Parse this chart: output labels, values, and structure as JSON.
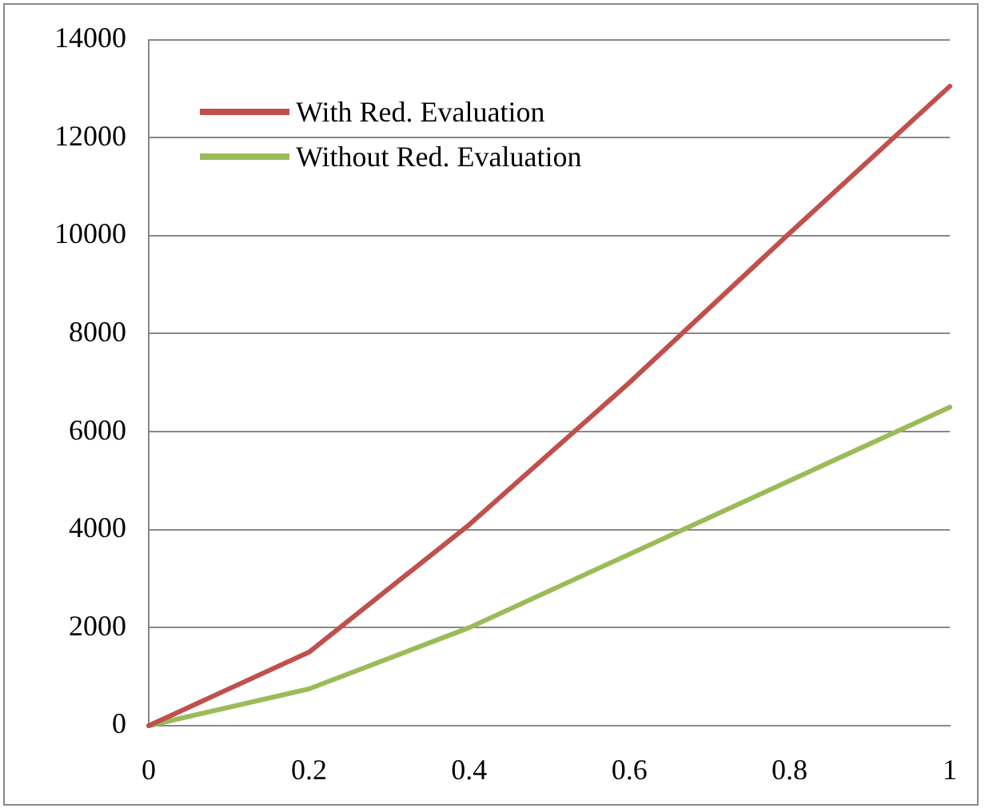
{
  "chart_data": {
    "type": "line",
    "x": [
      0,
      0.2,
      0.4,
      0.6,
      0.8,
      1
    ],
    "series": [
      {
        "name": "With Red. Evaluation",
        "color": "#c0504d",
        "values": [
          0,
          1500,
          4100,
          7000,
          10050,
          13050
        ]
      },
      {
        "name": "Without Red. Evaluation",
        "color": "#9bbb59",
        "values": [
          0,
          750,
          2000,
          3500,
          5000,
          6500
        ]
      }
    ],
    "xlim": [
      0,
      1
    ],
    "xticks": [
      0,
      0.2,
      0.4,
      0.6,
      0.8,
      1
    ],
    "ylim": [
      0,
      14000
    ],
    "yticks": [
      0,
      2000,
      4000,
      6000,
      8000,
      10000,
      12000,
      14000
    ],
    "grid": "y",
    "legend": "top left",
    "marker": "none",
    "line_style": "solid"
  }
}
